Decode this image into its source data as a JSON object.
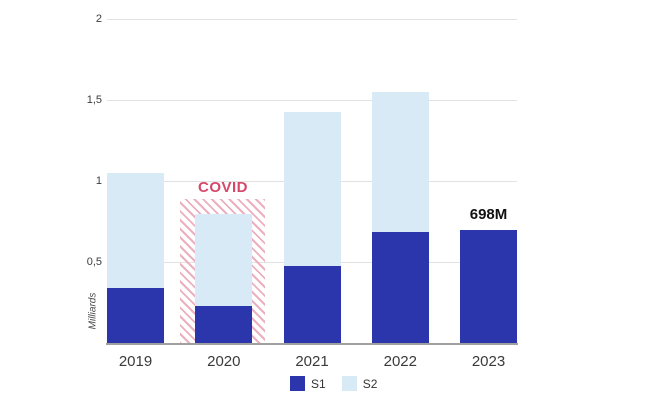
{
  "chart_data": {
    "type": "bar",
    "stacked": true,
    "title": "",
    "ylabel": "Milliards",
    "xlabel": "",
    "categories": [
      "2019",
      "2020",
      "2021",
      "2022",
      "2023"
    ],
    "series": [
      {
        "name": "S1",
        "color": "#2b36ad",
        "values": [
          0.34,
          0.23,
          0.48,
          0.69,
          0.698
        ]
      },
      {
        "name": "S2",
        "color": "#d8eaf5",
        "values": [
          0.71,
          0.57,
          0.95,
          0.86,
          0
        ]
      }
    ],
    "stack_totals": [
      1.05,
      0.8,
      1.43,
      1.55,
      0.698
    ],
    "ylim": [
      0,
      2
    ],
    "yticks": {
      "values": [
        0.5,
        1,
        1.5,
        2
      ],
      "labels": [
        "0,5",
        "1",
        "1,5",
        "2"
      ]
    },
    "grid": true,
    "legend_position": "bottom",
    "annotations": {
      "covid": {
        "label": "COVID",
        "color": "#d6476a",
        "over_category": "2020",
        "box_top_value": 0.89
      },
      "value_label": {
        "text": "698M",
        "over_category": "2023"
      }
    }
  },
  "colors": {
    "gridline": "#e2e2e2",
    "axis_line": "#a0a0a0",
    "hatch_stripe": "#ecafc0",
    "label_text": "#3a3a3a"
  }
}
